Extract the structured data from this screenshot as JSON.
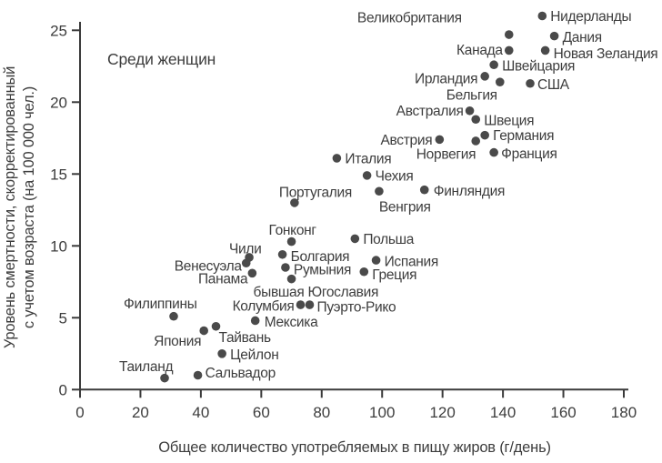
{
  "chart_data": {
    "type": "scatter",
    "annotation": "Среди женщин",
    "xlabel": "Общее количество употребляемых в пищу жиров (г/день)",
    "ylabel_line1": "Уровень смертности, скорректированный",
    "ylabel_line2": "с учетом возраста (на 100 000 чел.)",
    "xlim": [
      0,
      180
    ],
    "ylim": [
      0,
      25
    ],
    "xticks": [
      0,
      20,
      40,
      60,
      80,
      100,
      120,
      140,
      160,
      180
    ],
    "yticks": [
      0,
      5,
      10,
      15,
      20,
      25
    ],
    "grid": false,
    "legend": "none",
    "dot_color": "#4a4a4a",
    "text_color": "#3d3d3d",
    "axis_color": "#3a3a3a",
    "points": [
      {
        "name": "Нидерланды",
        "x": 153,
        "y": 26.0,
        "ox": 9,
        "oy": 0,
        "anchor": "start"
      },
      {
        "name": "Великобритания",
        "x": 142,
        "y": 24.7,
        "ox": -52,
        "oy": -19,
        "anchor": "end"
      },
      {
        "name": "Дания",
        "x": 157,
        "y": 24.6,
        "ox": 9,
        "oy": 1,
        "anchor": "start"
      },
      {
        "name": "Канада",
        "x": 142,
        "y": 23.6,
        "ox": -7,
        "oy": -1,
        "anchor": "end"
      },
      {
        "name": "Новая Зеландия",
        "x": 154,
        "y": 23.6,
        "ox": 9,
        "oy": 3,
        "anchor": "start"
      },
      {
        "name": "Швейцария",
        "x": 137,
        "y": 22.6,
        "ox": 9,
        "oy": 1,
        "anchor": "start"
      },
      {
        "name": "Ирландия",
        "x": 134,
        "y": 21.8,
        "ox": -8,
        "oy": 2,
        "anchor": "end"
      },
      {
        "name": "Бельгия",
        "x": 139,
        "y": 21.4,
        "ox": -3,
        "oy": 14,
        "anchor": "end"
      },
      {
        "name": "США",
        "x": 149,
        "y": 21.3,
        "ox": 8,
        "oy": 1,
        "anchor": "start"
      },
      {
        "name": "Австралия",
        "x": 129,
        "y": 19.4,
        "ox": -7,
        "oy": 0,
        "anchor": "end"
      },
      {
        "name": "Швеция",
        "x": 131,
        "y": 18.8,
        "ox": 9,
        "oy": 1,
        "anchor": "start"
      },
      {
        "name": "Германия",
        "x": 134,
        "y": 17.7,
        "ox": 9,
        "oy": 0,
        "anchor": "start"
      },
      {
        "name": "Австрия",
        "x": 119,
        "y": 17.4,
        "ox": -8,
        "oy": 0,
        "anchor": "end"
      },
      {
        "name": "Норвегия",
        "x": 131,
        "y": 17.3,
        "ox": 0,
        "oy": 14,
        "anchor": "end"
      },
      {
        "name": "Франция",
        "x": 137,
        "y": 16.5,
        "ox": 8,
        "oy": 1,
        "anchor": "start"
      },
      {
        "name": "Италия",
        "x": 85,
        "y": 16.1,
        "ox": 9,
        "oy": 0,
        "anchor": "start"
      },
      {
        "name": "Чехия",
        "x": 95,
        "y": 14.9,
        "ox": 9,
        "oy": 0,
        "anchor": "start"
      },
      {
        "name": "Финляндия",
        "x": 114,
        "y": 13.9,
        "ox": 10,
        "oy": 1,
        "anchor": "start"
      },
      {
        "name": "Венгрия",
        "x": 99,
        "y": 13.8,
        "ox": 0,
        "oy": 17,
        "anchor": "start"
      },
      {
        "name": "Португалия",
        "x": 71,
        "y": 13.0,
        "ox": -17,
        "oy": -12,
        "anchor": "start"
      },
      {
        "name": "Гонконг",
        "x": 70,
        "y": 10.3,
        "ox": -25,
        "oy": -13,
        "anchor": "start"
      },
      {
        "name": "Польша",
        "x": 91,
        "y": 10.5,
        "ox": 9,
        "oy": 0,
        "anchor": "start"
      },
      {
        "name": "Чили",
        "x": 56,
        "y": 9.2,
        "ox": -22,
        "oy": -10,
        "anchor": "start"
      },
      {
        "name": "Болгария",
        "x": 67,
        "y": 9.4,
        "ox": 9,
        "oy": 2,
        "anchor": "start"
      },
      {
        "name": "Венесуэла",
        "x": 55,
        "y": 8.8,
        "ox": -5,
        "oy": 3,
        "anchor": "end"
      },
      {
        "name": "Румыния",
        "x": 68,
        "y": 8.5,
        "ox": 9,
        "oy": 2,
        "anchor": "start"
      },
      {
        "name": "Испания",
        "x": 98,
        "y": 9.0,
        "ox": 9,
        "oy": 1,
        "anchor": "start"
      },
      {
        "name": "Греция",
        "x": 94,
        "y": 8.2,
        "ox": 9,
        "oy": 3,
        "anchor": "start"
      },
      {
        "name": "Панама",
        "x": 57,
        "y": 8.1,
        "ox": -5,
        "oy": 6,
        "anchor": "end"
      },
      {
        "name": "бывшая Югославия",
        "x": 70,
        "y": 7.7,
        "ox": -42,
        "oy": 14,
        "anchor": "start"
      },
      {
        "name": "Колумбия",
        "x": 73,
        "y": 5.9,
        "ox": -7,
        "oy": 1,
        "anchor": "end"
      },
      {
        "name": "Пуэрто-Рико",
        "x": 76,
        "y": 5.9,
        "ox": 8,
        "oy": 2,
        "anchor": "start"
      },
      {
        "name": "Мексика",
        "x": 58,
        "y": 4.8,
        "ox": 10,
        "oy": 1,
        "anchor": "start"
      },
      {
        "name": "Филиппины",
        "x": 31,
        "y": 5.1,
        "ox": -55,
        "oy": -14,
        "anchor": "start"
      },
      {
        "name": "Япония",
        "x": 41,
        "y": 4.1,
        "ox": -3,
        "oy": 11,
        "anchor": "end"
      },
      {
        "name": "Тайвань",
        "x": 45,
        "y": 4.4,
        "ox": 3,
        "oy": 12,
        "anchor": "start"
      },
      {
        "name": "Цейлон",
        "x": 47,
        "y": 2.5,
        "ox": 9,
        "oy": 1,
        "anchor": "start"
      },
      {
        "name": "Таиланд",
        "x": 28,
        "y": 0.8,
        "ox": -50,
        "oy": -13,
        "anchor": "start"
      },
      {
        "name": "Сальвадор",
        "x": 39,
        "y": 1.0,
        "ox": 8,
        "oy": -3,
        "anchor": "start"
      }
    ]
  }
}
